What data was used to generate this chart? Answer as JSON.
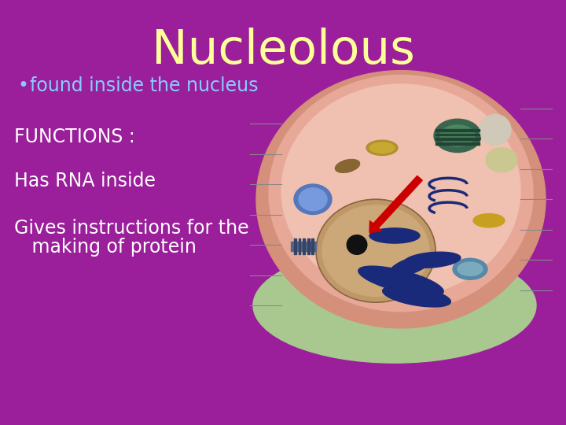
{
  "title": "Nucleolous",
  "title_color": "#FFFF99",
  "title_fontsize": 44,
  "background_color": "#9B1F9B",
  "bullet_text": "found inside the nucleus",
  "bullet_color": "#88CCFF",
  "bullet_fontsize": 17,
  "functions_label": "FUNCTIONS :",
  "functions_color": "#FFFFFF",
  "functions_fontsize": 17,
  "line1": "Has RNA inside",
  "line1_color": "#FFFFFF",
  "line1_fontsize": 17,
  "line2a": "Gives instructions for the",
  "line2b": "   making of protein",
  "line2_color": "#FFFFFF",
  "line2_fontsize": 17,
  "bullet_symbol": "•",
  "cell_bg": "#FFFFFF",
  "cell_outer_green": "#A8C890",
  "cell_pink_outer": "#D4907A",
  "cell_pink_main": "#E8A898",
  "cell_pink_light": "#F0C0B0",
  "nucleus_color": "#C8A878",
  "nucleus_inner": "#D4B888",
  "nucleolus_color": "#111111",
  "arrow_color": "#CC0000",
  "blue_organelle": "#5577BB",
  "gold_organelle": "#B89030",
  "teal_organelle": "#446655",
  "dark_blue": "#1A2A7A",
  "line_color": "#888888"
}
